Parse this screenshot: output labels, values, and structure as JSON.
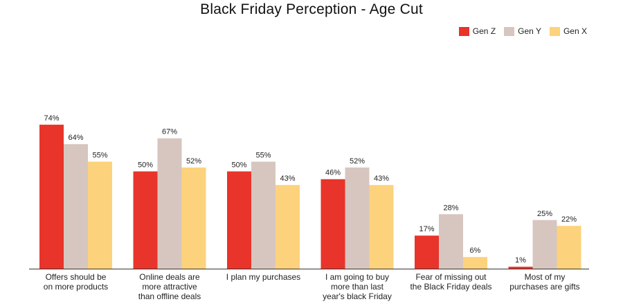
{
  "chart_data": {
    "type": "bar",
    "title": "Black Friday Perception - Age Cut",
    "categories": [
      [
        "Offers should be",
        "on more products"
      ],
      [
        "Online deals are",
        "more attractive",
        "than offline deals"
      ],
      [
        "I plan my purchases"
      ],
      [
        "I am going to buy",
        "more than last",
        "year's black Friday"
      ],
      [
        "Fear of missing out",
        "the Black Friday deals"
      ],
      [
        "Most of my",
        "purchases are gifts"
      ]
    ],
    "series": [
      {
        "name": "Gen Z",
        "color": "#e8342a",
        "values": [
          74,
          50,
          50,
          46,
          17,
          1
        ]
      },
      {
        "name": "Gen Y",
        "color": "#d7c6c0",
        "values": [
          64,
          67,
          55,
          52,
          28,
          25
        ]
      },
      {
        "name": "Gen X",
        "color": "#fdd27c",
        "values": [
          55,
          52,
          43,
          43,
          6,
          22
        ]
      }
    ],
    "value_suffix": "%",
    "ylim": [
      0,
      80
    ],
    "grid": false,
    "legend_position": "top-right"
  }
}
